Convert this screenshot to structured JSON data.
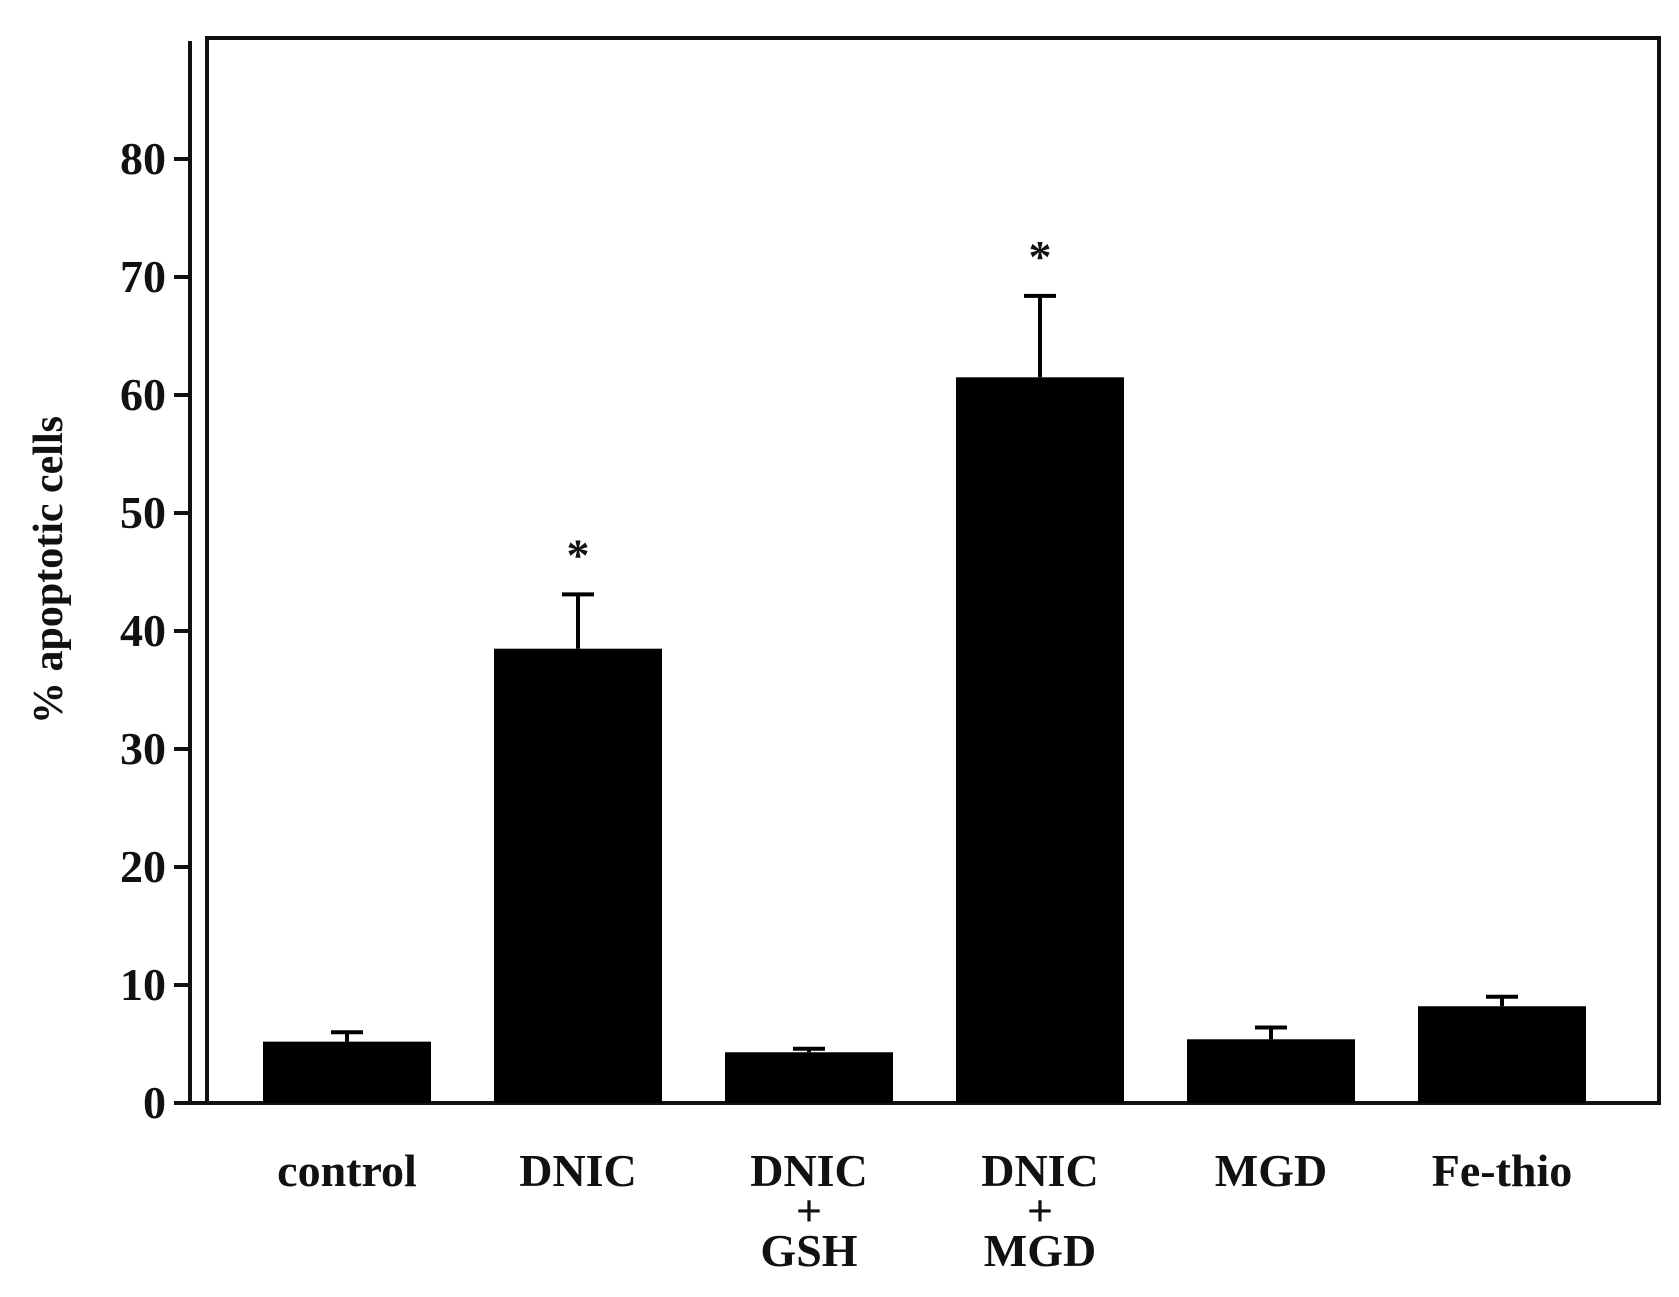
{
  "chart_data": {
    "type": "bar",
    "title": "",
    "xlabel": "",
    "ylabel": "% apoptotic cells",
    "ylim": [
      0,
      90
    ],
    "yticks": [
      0,
      10,
      20,
      30,
      40,
      50,
      60,
      70,
      80
    ],
    "grid": false,
    "legend": "none",
    "bar_color": "#000000",
    "categories": [
      [
        "control"
      ],
      [
        "DNIC"
      ],
      [
        "DNIC",
        "+",
        "GSH"
      ],
      [
        "DNIC",
        "+",
        "MGD"
      ],
      [
        "MGD"
      ],
      [
        "Fe-thio"
      ]
    ],
    "values": [
      5.2,
      38.5,
      4.3,
      61.5,
      5.4,
      8.2
    ],
    "errors": [
      0.8,
      4.6,
      0.3,
      6.9,
      1.0,
      0.8
    ],
    "significance": [
      "",
      "*",
      "",
      "*",
      "",
      ""
    ]
  }
}
